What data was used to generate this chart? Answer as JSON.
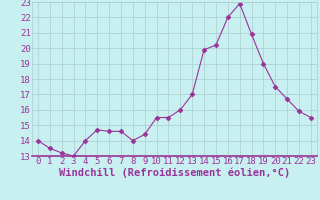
{
  "x": [
    0,
    1,
    2,
    3,
    4,
    5,
    6,
    7,
    8,
    9,
    10,
    11,
    12,
    13,
    14,
    15,
    16,
    17,
    18,
    19,
    20,
    21,
    22,
    23
  ],
  "y": [
    14.0,
    13.5,
    13.2,
    13.0,
    14.0,
    14.7,
    14.6,
    14.6,
    14.0,
    14.4,
    15.5,
    15.5,
    16.0,
    17.0,
    19.9,
    20.2,
    22.0,
    22.9,
    20.9,
    19.0,
    17.5,
    16.7,
    15.9,
    15.5
  ],
  "line_color": "#993399",
  "marker": "D",
  "marker_size": 2.5,
  "xlabel": "Windchill (Refroidissement éolien,°C)",
  "ylim": [
    13,
    23
  ],
  "ytick_values": [
    13,
    14,
    15,
    16,
    17,
    18,
    19,
    20,
    21,
    22,
    23
  ],
  "ytick_labels": [
    "13",
    "14",
    "15",
    "16",
    "17",
    "18",
    "19",
    "20",
    "21",
    "22",
    "23"
  ],
  "xtick_labels": [
    "0",
    "1",
    "2",
    "3",
    "4",
    "5",
    "6",
    "7",
    "8",
    "9",
    "10",
    "11",
    "12",
    "13",
    "14",
    "15",
    "16",
    "17",
    "18",
    "19",
    "20",
    "21",
    "22",
    "23"
  ],
  "bg_color": "#c8f0f0",
  "grid_color": "#aacccc",
  "axis_color": "#993399",
  "tick_color": "#993399",
  "xlabel_color": "#993399",
  "tick_fontsize": 6.5,
  "xlabel_fontsize": 7.5
}
